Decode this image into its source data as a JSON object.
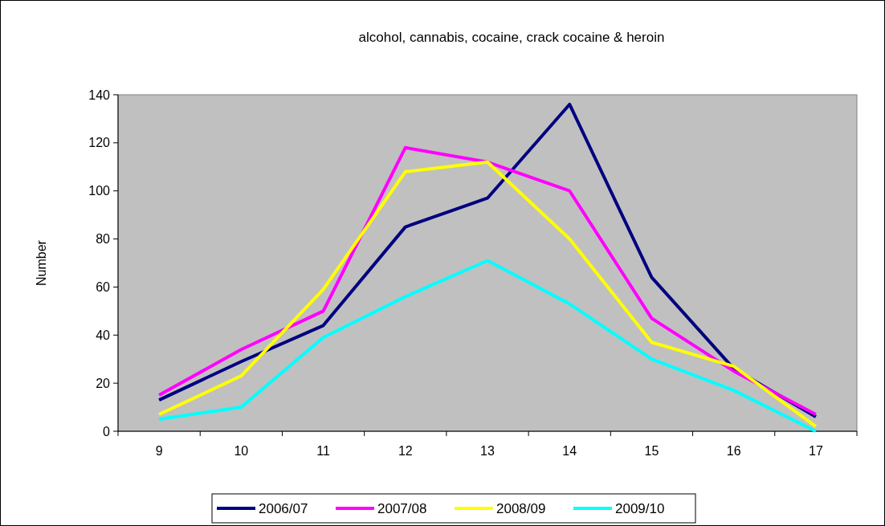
{
  "chart_data": {
    "type": "line",
    "title": "alcohol, cannabis, cocaine, crack cocaine & heroin",
    "ylabel": "Number",
    "categories": [
      "9",
      "10",
      "11",
      "12",
      "13",
      "14",
      "15",
      "16",
      "17"
    ],
    "series": [
      {
        "name": "2006/07",
        "color": "#000080",
        "values": [
          13,
          29,
          44,
          85,
          97,
          136,
          64,
          26,
          6
        ]
      },
      {
        "name": "2007/08",
        "color": "#ff00ff",
        "values": [
          15,
          34,
          50,
          118,
          112,
          100,
          47,
          25,
          7
        ]
      },
      {
        "name": "2008/09",
        "color": "#ffff00",
        "values": [
          7,
          23,
          59,
          108,
          112,
          80,
          37,
          27,
          2
        ]
      },
      {
        "name": "2009/10",
        "color": "#00ffff",
        "values": [
          5,
          10,
          39,
          56,
          71,
          53,
          30,
          17,
          0
        ]
      }
    ],
    "ylim": [
      0,
      140
    ],
    "yticks": [
      0,
      20,
      40,
      60,
      80,
      100,
      120,
      140
    ],
    "grid": false,
    "legend": "bottom",
    "marker": "none",
    "line_style": "solid"
  }
}
